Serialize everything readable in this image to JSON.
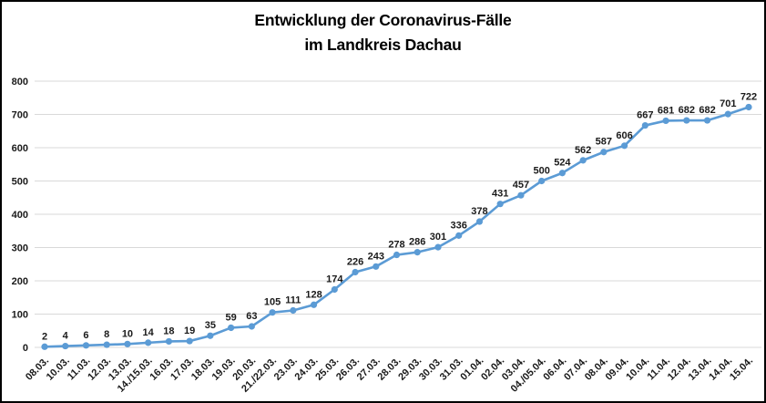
{
  "title": {
    "line1": "Entwicklung der Coronavirus-Fälle",
    "line2": "im Landkreis Dachau"
  },
  "chart_data": {
    "type": "line",
    "title": "Entwicklung der Coronavirus-Fälle im Landkreis Dachau",
    "xlabel": "",
    "ylabel": "",
    "categories": [
      "08.03.",
      "10.03.",
      "11.03.",
      "12.03.",
      "13.03.",
      "14./15.03.",
      "16.03.",
      "17.03.",
      "18.03.",
      "19.03.",
      "20.03.",
      "21./22.03.",
      "23.03.",
      "24.03.",
      "25.03.",
      "26.03.",
      "27.03.",
      "28.03.",
      "29.03.",
      "30.03.",
      "31.03.",
      "01.04.",
      "02.04.",
      "03.04.",
      "04./05.04.",
      "06.04.",
      "07.04.",
      "08.04.",
      "09.04.",
      "10.04.",
      "11.04.",
      "12.04.",
      "13.04.",
      "14.04.",
      "15.04."
    ],
    "values": [
      2,
      4,
      6,
      8,
      10,
      14,
      18,
      19,
      35,
      59,
      63,
      105,
      111,
      128,
      174,
      226,
      243,
      278,
      286,
      301,
      336,
      378,
      431,
      457,
      500,
      524,
      562,
      587,
      606,
      667,
      681,
      682,
      682,
      701,
      722
    ],
    "ylim": [
      0,
      800
    ],
    "ytick_step": 100,
    "grid": true,
    "legend": "none",
    "marker": "circle",
    "data_label_position": "above",
    "colors": {
      "line": "#5B9BD5",
      "grid": "#D9D9D9",
      "text": "#1a1a1a",
      "background": "#FFFFFF",
      "border": "#000000"
    }
  }
}
